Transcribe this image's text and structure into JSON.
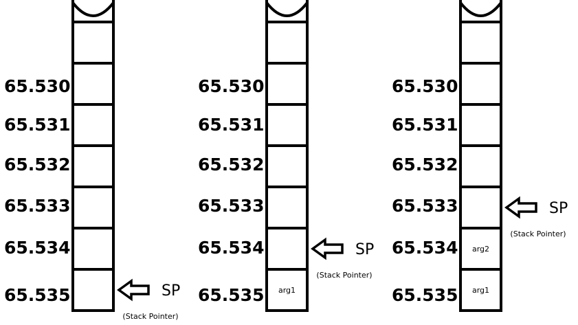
{
  "stacks": [
    {
      "addresses": [
        "65.530",
        "65.531",
        "65.532",
        "65.533",
        "65.534",
        "65.535"
      ],
      "cells": [
        "",
        "",
        "",
        "",
        "",
        ""
      ],
      "pointer": {
        "label": "SP",
        "caption": "(Stack Pointer)",
        "at_address": "65.535"
      }
    },
    {
      "addresses": [
        "65.530",
        "65.531",
        "65.532",
        "65.533",
        "65.534",
        "65.535"
      ],
      "cells": [
        "",
        "",
        "",
        "",
        "",
        "arg1"
      ],
      "pointer": {
        "label": "SP",
        "caption": "(Stack Pointer)",
        "at_address": "65.534"
      }
    },
    {
      "addresses": [
        "65.530",
        "65.531",
        "65.532",
        "65.533",
        "65.534",
        "65.535"
      ],
      "cells": [
        "",
        "",
        "",
        "",
        "arg2",
        "arg1"
      ],
      "pointer": {
        "label": "SP",
        "caption": "(Stack Pointer)",
        "at_address": "65.533"
      }
    }
  ]
}
